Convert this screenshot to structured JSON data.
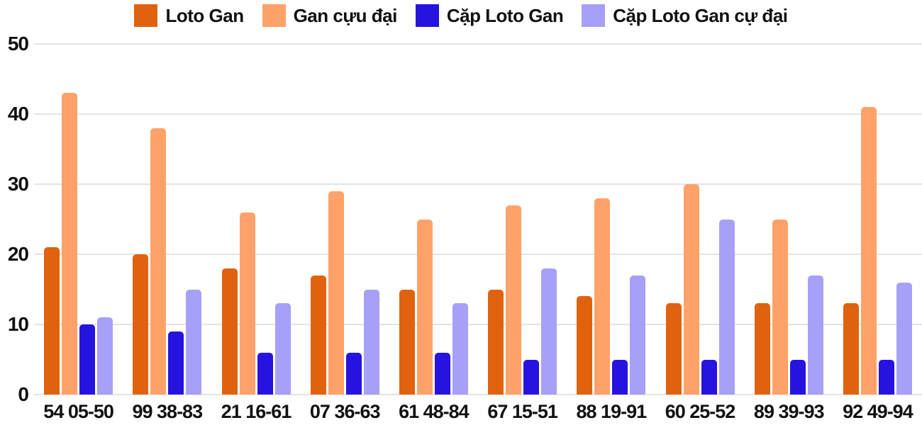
{
  "chart_data": {
    "type": "bar",
    "title": "",
    "xlabel": "",
    "ylabel": "",
    "ylim": [
      0,
      50
    ],
    "yticks": [
      0,
      10,
      20,
      30,
      40,
      50
    ],
    "grid": true,
    "legend_position": "top-center",
    "categories": [
      "54 05-50",
      "99 38-83",
      "21 16-61",
      "07 36-63",
      "61 48-84",
      "67 15-51",
      "88 19-91",
      "60 25-52",
      "89 39-93",
      "92 49-94"
    ],
    "series": [
      {
        "name": "Loto Gan",
        "color": "#e0620f",
        "values": [
          21,
          20,
          18,
          17,
          15,
          15,
          14,
          13,
          13,
          13
        ]
      },
      {
        "name": "Gan cựu đại",
        "color": "#ffa269",
        "values": [
          43,
          38,
          26,
          29,
          25,
          27,
          28,
          30,
          25,
          41
        ]
      },
      {
        "name": "Cặp Loto Gan",
        "color": "#2713df",
        "values": [
          10,
          9,
          6,
          6,
          6,
          5,
          5,
          5,
          5,
          5
        ]
      },
      {
        "name": "Cặp Loto Gan cự đại",
        "color": "#a6a0f7",
        "values": [
          11,
          15,
          13,
          15,
          13,
          18,
          17,
          25,
          17,
          16
        ]
      }
    ]
  },
  "colors": {
    "background": "#ffffff",
    "gridline": "#e4e4e4",
    "text": "#111111"
  }
}
